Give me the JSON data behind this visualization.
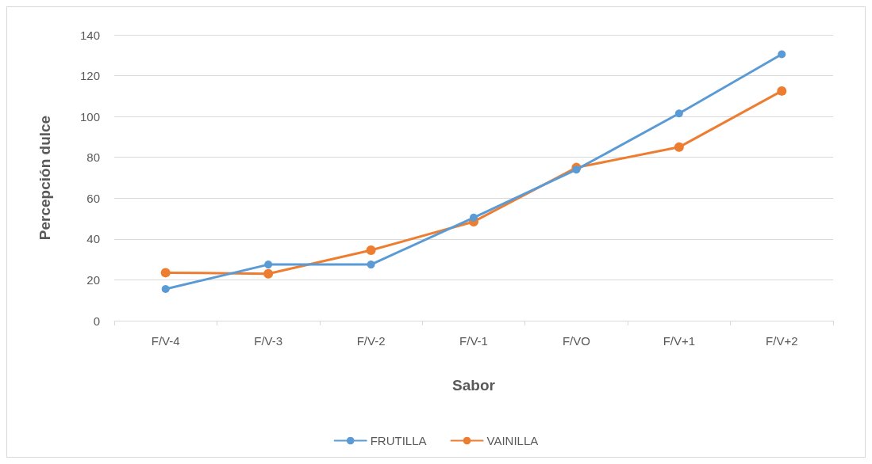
{
  "chart_data": {
    "type": "line",
    "xlabel": "Sabor",
    "ylabel": "Percepción dulce",
    "categories": [
      "F/V-4",
      "F/V-3",
      "F/V-2",
      "F/V-1",
      "F/VO",
      "F/V+1",
      "F/V+2"
    ],
    "series": [
      {
        "name": "FRUTILLA",
        "color": "#5b9bd5",
        "values": [
          15.5,
          27.5,
          27.5,
          50.5,
          74,
          101.5,
          130.5
        ]
      },
      {
        "name": "VAINILLA",
        "color": "#ed7d31",
        "values": [
          23.5,
          23,
          34.5,
          48.5,
          75,
          85,
          112.5
        ]
      }
    ],
    "ylim": [
      0,
      140
    ],
    "yticks": [
      0,
      20,
      40,
      60,
      80,
      100,
      120,
      140
    ],
    "grid": "y",
    "legend": "bottom",
    "marker": "circle",
    "line_style": "solid"
  }
}
